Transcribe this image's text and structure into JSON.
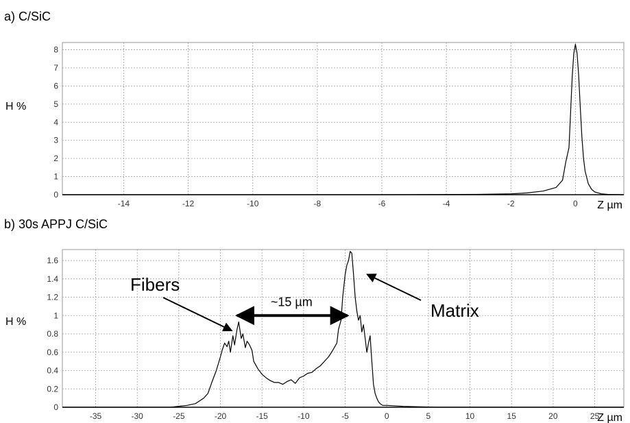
{
  "chart_data": [
    {
      "type": "line",
      "panel_title": "a) C/SiC",
      "xlabel": "Z µm",
      "ylabel": "H %",
      "xlim": [
        -15.9,
        1.5
      ],
      "ylim": [
        0,
        8.4
      ],
      "x_ticks": [
        -14,
        -12,
        -10,
        -8,
        -6,
        -4,
        -2,
        0
      ],
      "y_ticks": [
        0,
        1,
        2,
        3,
        4,
        5,
        6,
        7,
        8
      ],
      "grid": true,
      "series": [
        {
          "x": [
            -15.9,
            -6,
            -3,
            -2,
            -1.5,
            -1,
            -0.6,
            -0.4,
            -0.3,
            -0.2,
            -0.15,
            -0.1,
            -0.05,
            0,
            0.05,
            0.1,
            0.15,
            0.2,
            0.25,
            0.3,
            0.4,
            0.5,
            0.6,
            0.8,
            1.0,
            1.5
          ],
          "y": [
            0,
            0,
            0.02,
            0.05,
            0.1,
            0.2,
            0.4,
            0.8,
            1.8,
            2.6,
            4.5,
            6.5,
            7.8,
            8.3,
            7.8,
            6.6,
            4.8,
            3.2,
            2.0,
            1.3,
            0.6,
            0.3,
            0.15,
            0.05,
            0.02,
            0
          ]
        }
      ]
    },
    {
      "type": "line",
      "panel_title": "b) 30s APPJ C/SiC",
      "xlabel": "Z µm",
      "ylabel": "H %",
      "xlim": [
        -39,
        28.5
      ],
      "ylim": [
        0,
        1.72
      ],
      "x_ticks": [
        -35,
        -30,
        -25,
        -20,
        -15,
        -10,
        -5,
        0,
        5,
        10,
        15,
        20,
        25
      ],
      "y_ticks": [
        0,
        0.2,
        0.4,
        0.6,
        0.8,
        1,
        1.2,
        1.4,
        1.6
      ],
      "grid": true,
      "series": [
        {
          "x": [
            -39,
            -26,
            -24,
            -23,
            -22,
            -21.5,
            -21,
            -20.5,
            -20,
            -19.8,
            -19.5,
            -19.2,
            -19,
            -18.8,
            -18.5,
            -18.3,
            -18,
            -17.8,
            -17.5,
            -17.3,
            -17,
            -16.8,
            -16.5,
            -16.2,
            -16,
            -15.5,
            -15,
            -14.5,
            -14,
            -13.5,
            -13,
            -12.5,
            -12,
            -11.5,
            -11,
            -10.5,
            -10,
            -9.5,
            -9,
            -8.5,
            -8,
            -7.5,
            -7,
            -6.5,
            -6,
            -5.8,
            -5.5,
            -5.3,
            -5,
            -4.8,
            -4.6,
            -4.4,
            -4.2,
            -4,
            -3.8,
            -3.6,
            -3.4,
            -3.2,
            -3,
            -2.8,
            -2.6,
            -2.4,
            -2.2,
            -2,
            -1.8,
            -1.6,
            -1.4,
            -1.2,
            -1,
            -0.8,
            -0.5,
            0,
            2,
            6,
            28.5
          ],
          "y": [
            0,
            0,
            0.02,
            0.04,
            0.1,
            0.15,
            0.28,
            0.4,
            0.55,
            0.62,
            0.7,
            0.66,
            0.72,
            0.6,
            0.78,
            0.68,
            0.85,
            0.93,
            0.75,
            0.8,
            0.65,
            0.72,
            0.68,
            0.62,
            0.5,
            0.42,
            0.36,
            0.32,
            0.29,
            0.27,
            0.27,
            0.25,
            0.28,
            0.3,
            0.26,
            0.32,
            0.34,
            0.37,
            0.38,
            0.42,
            0.45,
            0.5,
            0.55,
            0.62,
            0.7,
            0.85,
            0.95,
            1.2,
            1.45,
            1.55,
            1.6,
            1.7,
            1.68,
            1.45,
            1.2,
            1.05,
            0.95,
            1.0,
            0.82,
            0.9,
            0.75,
            0.6,
            0.7,
            0.78,
            0.5,
            0.25,
            0.15,
            0.1,
            0.06,
            0.04,
            0.02,
            0.02,
            0.01,
            0,
            0
          ]
        }
      ],
      "annotations": {
        "fibers": "Fibers",
        "matrix": "Matrix",
        "spacing": "~15 µm"
      }
    }
  ]
}
